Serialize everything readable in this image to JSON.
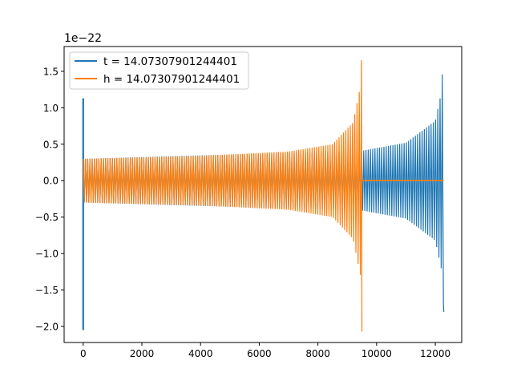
{
  "chart_data": {
    "type": "line",
    "title": "",
    "xlabel": "",
    "ylabel": "",
    "y_offset_label": "1e−22",
    "xlim": [
      -650,
      12900
    ],
    "ylim": [
      -2.22,
      1.84
    ],
    "grid": false,
    "legend_position": "top-left",
    "x_ticks": [
      {
        "value": 0,
        "label": "0"
      },
      {
        "value": 2000,
        "label": "2000"
      },
      {
        "value": 4000,
        "label": "4000"
      },
      {
        "value": 6000,
        "label": "6000"
      },
      {
        "value": 8000,
        "label": "8000"
      },
      {
        "value": 10000,
        "label": "10000"
      },
      {
        "value": 12000,
        "label": "12000"
      }
    ],
    "y_ticks": [
      {
        "value": -2.0,
        "label": "−2.0"
      },
      {
        "value": -1.5,
        "label": "−1.5"
      },
      {
        "value": -1.0,
        "label": "−1.0"
      },
      {
        "value": -0.5,
        "label": "−0.5"
      },
      {
        "value": 0.0,
        "label": "0.0"
      },
      {
        "value": 0.5,
        "label": "0.5"
      },
      {
        "value": 1.0,
        "label": "1.0"
      },
      {
        "value": 1.5,
        "label": "1.5"
      }
    ],
    "series": [
      {
        "name": "t = 14.07307901244401",
        "color": "#1f77b4",
        "x_end": 12290,
        "spike_at_start": {
          "x": 0,
          "max": 1.13,
          "min": -2.05
        },
        "envelope": [
          {
            "x": 0,
            "amp": 0.3
          },
          {
            "x": 9500,
            "amp": 0.41
          },
          {
            "x": 11000,
            "amp": 0.52
          },
          {
            "x": 12000,
            "amp": 0.82
          },
          {
            "x": 12200,
            "amp": 1.2
          },
          {
            "x": 12275,
            "amp": 1.7
          }
        ],
        "final_min": -1.8
      },
      {
        "name": "h = 14.07307901244401",
        "color": "#ff7f0e",
        "x_end": 12290,
        "chirp_end": 9500,
        "envelope": [
          {
            "x": 0,
            "amp": 0.3
          },
          {
            "x": 4000,
            "amp": 0.34
          },
          {
            "x": 7000,
            "amp": 0.4
          },
          {
            "x": 8500,
            "amp": 0.5
          },
          {
            "x": 9200,
            "amp": 0.8
          },
          {
            "x": 9450,
            "amp": 1.3
          },
          {
            "x": 9490,
            "amp": 1.7
          }
        ],
        "final_min": -2.07,
        "flat_value": 0.0
      }
    ]
  }
}
